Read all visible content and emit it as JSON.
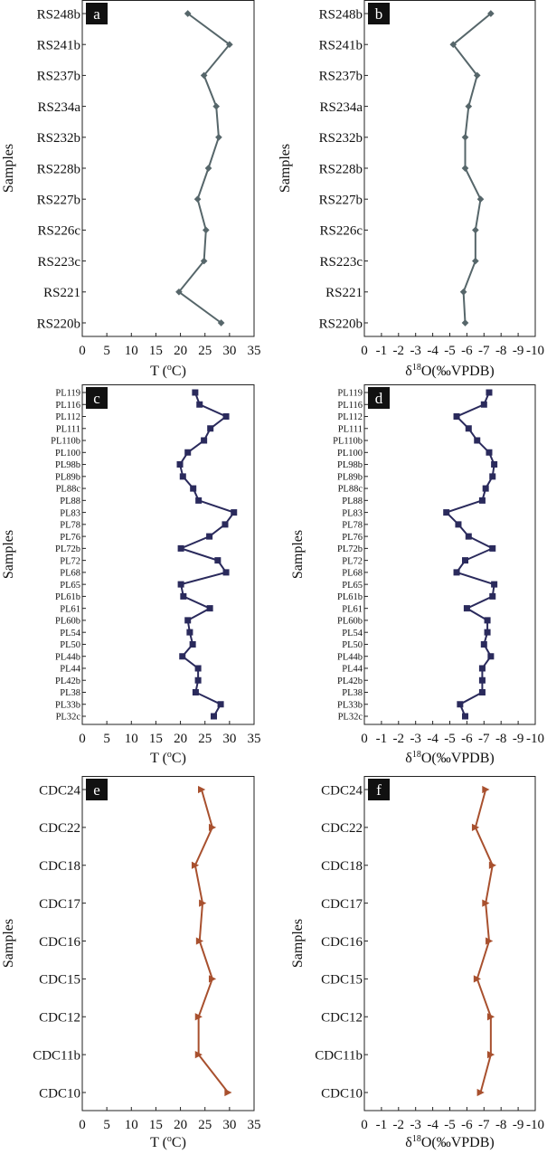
{
  "chart_data": [
    {
      "panel_label": "a",
      "type": "line",
      "marker": "diamond",
      "color": "#56666a",
      "ylabel": "Samples",
      "xlabel_main": "T (",
      "xlabel_sup": "o",
      "xlabel_rest": "C)",
      "xlim": [
        0,
        35
      ],
      "x_ticks": [
        "0",
        "5",
        "10",
        "15",
        "20",
        "25",
        "30",
        "35"
      ],
      "categories": [
        "RS248b",
        "RS241b",
        "RS237b",
        "RS234a",
        "RS232b",
        "RS228b",
        "RS227b",
        "RS226c",
        "RS223c",
        "RS221",
        "RS220b"
      ],
      "values": [
        21.5,
        30,
        24.8,
        27.3,
        27.8,
        25.7,
        23.5,
        25.2,
        24.8,
        19.7,
        28.3
      ]
    },
    {
      "panel_label": "b",
      "type": "line",
      "marker": "diamond",
      "color": "#56666a",
      "ylabel": "Samples",
      "xlabel_main": "δ",
      "xlabel_sup": "18",
      "xlabel_rest": "O(‰VPDB)",
      "xlim": [
        0,
        -10
      ],
      "x_ticks": [
        "0",
        "-1",
        "-2",
        "-3",
        "-4",
        "-5",
        "-6",
        "-7",
        "-8",
        "-9",
        "-10"
      ],
      "categories": [
        "RS248b",
        "RS241b",
        "RS237b",
        "RS234a",
        "RS232b",
        "RS228b",
        "RS227b",
        "RS226c",
        "RS223c",
        "RS221",
        "RS220b"
      ],
      "values": [
        -7.4,
        -5.2,
        -6.6,
        -6.1,
        -5.9,
        -5.9,
        -6.8,
        -6.5,
        -6.5,
        -5.8,
        -5.9
      ]
    },
    {
      "panel_label": "c",
      "type": "line",
      "marker": "square",
      "color": "#2a2a5c",
      "ylabel": "Samples",
      "xlabel_main": "T (",
      "xlabel_sup": "o",
      "xlabel_rest": "C)",
      "xlim": [
        0,
        35
      ],
      "x_ticks": [
        "0",
        "5",
        "10",
        "15",
        "20",
        "25",
        "30",
        "35"
      ],
      "categories": [
        "PL119",
        "PL116",
        "PL112",
        "PL111",
        "PL110b",
        "PL100",
        "PL98b",
        "PL89b",
        "PL88c",
        "PL88",
        "PL83",
        "PL78",
        "PL76",
        "PL72b",
        "PL72",
        "PL68",
        "PL65",
        "PL61b",
        "PL61",
        "PL60b",
        "PL54",
        "PL50",
        "PL44b",
        "PL44",
        "PL42b",
        "PL38",
        "PL33b",
        "PL32c"
      ],
      "values": [
        23,
        23.9,
        29.3,
        26.1,
        24.8,
        21.5,
        19.9,
        20.5,
        22.6,
        23.7,
        30.9,
        29.1,
        25.9,
        20.1,
        27.6,
        29.3,
        20.1,
        20.6,
        26,
        21.5,
        21.9,
        22.5,
        20.4,
        23.6,
        23.6,
        23.1,
        28.2,
        26.8
      ]
    },
    {
      "panel_label": "d",
      "type": "line",
      "marker": "square",
      "color": "#2a2a5c",
      "ylabel": "Samples",
      "xlabel_main": "δ",
      "xlabel_sup": "18",
      "xlabel_rest": "O(‰VPDB)",
      "xlim": [
        0,
        -10
      ],
      "x_ticks": [
        "0",
        "-1",
        "-2",
        "-3",
        "-4",
        "-5",
        "-6",
        "-7",
        "-8",
        "-9",
        "-10"
      ],
      "categories": [
        "PL119",
        "PL116",
        "PL112",
        "PL111",
        "PL110b",
        "PL100",
        "PL98b",
        "PL89b",
        "PL88c",
        "PL88",
        "PL83",
        "PL78",
        "PL76",
        "PL72b",
        "PL72",
        "PL68",
        "PL65",
        "PL61b",
        "PL61",
        "PL60b",
        "PL54",
        "PL50",
        "PL44b",
        "PL44",
        "PL42b",
        "PL38",
        "PL33b",
        "PL32c"
      ],
      "values": [
        -7.3,
        -7,
        -5.4,
        -6.1,
        -6.6,
        -7.3,
        -7.6,
        -7.5,
        -7.1,
        -6.9,
        -4.8,
        -5.5,
        -6.1,
        -7.5,
        -5.9,
        -5.4,
        -7.6,
        -7.5,
        -6,
        -7.2,
        -7.2,
        -7,
        -7.4,
        -6.9,
        -6.9,
        -6.9,
        -5.6,
        -5.9
      ]
    },
    {
      "panel_label": "e",
      "type": "line",
      "marker": "triangle",
      "color": "#a8502e",
      "ylabel": "Samples",
      "xlabel_main": "T (",
      "xlabel_sup": "o",
      "xlabel_rest": "C)",
      "xlim": [
        0,
        35
      ],
      "x_ticks": [
        "0",
        "5",
        "10",
        "15",
        "20",
        "25",
        "30",
        "35"
      ],
      "categories": [
        "CDC24",
        "CDC22",
        "CDC18",
        "CDC17",
        "CDC16",
        "CDC15",
        "CDC12",
        "CDC11b",
        "CDC10"
      ],
      "values": [
        24.3,
        26.5,
        23,
        24.5,
        23.9,
        26.5,
        23.7,
        23.7,
        29.7
      ]
    },
    {
      "panel_label": "f",
      "type": "line",
      "marker": "triangle",
      "color": "#a8502e",
      "ylabel": "Samples",
      "xlabel_main": "δ",
      "xlabel_sup": "18",
      "xlabel_rest": "O(‰VPDB)",
      "xlim": [
        0,
        -10
      ],
      "x_ticks": [
        "0",
        "-1",
        "-2",
        "-3",
        "-4",
        "-5",
        "-6",
        "-7",
        "-8",
        "-9",
        "-10"
      ],
      "categories": [
        "CDC24",
        "CDC22",
        "CDC18",
        "CDC17",
        "CDC16",
        "CDC15",
        "CDC12",
        "CDC11b",
        "CDC10"
      ],
      "values": [
        -7.1,
        -6.5,
        -7.5,
        -7.1,
        -7.3,
        -6.6,
        -7.4,
        -7.4,
        -6.8
      ]
    }
  ]
}
